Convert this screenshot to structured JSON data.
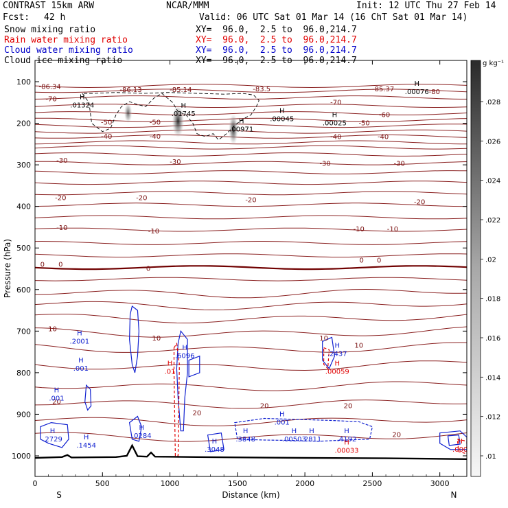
{
  "header": {
    "model": "CONTRAST 15km ARW",
    "source": "NCAR/MMM",
    "init": "Init: 12 UTC Thu 27 Feb 14",
    "fcst_label": "Fcst:",
    "fcst_value": "42 h",
    "valid": "Valid: 06 UTC Sat 01 Mar 14 (16 ChT Sat 01 Mar 14)"
  },
  "fields": [
    {
      "name": "Snow mixing ratio",
      "xy": "XY=  96.0,  2.5 to  96.0,214.7",
      "color": "#000000"
    },
    {
      "name": "Rain water mixing ratio",
      "xy": "XY=  96.0,  2.5 to  96.0,214.7",
      "color": "#e00000"
    },
    {
      "name": "Cloud water mixing ratio",
      "xy": "XY=  96.0,  2.5 to  96.0,214.7",
      "color": "#0000c8"
    },
    {
      "name": "Cloud ice mixing ratio",
      "xy": "XY=  96.0,  2.5 to  96.0,214.7",
      "color": "#000000"
    }
  ],
  "chart_data": {
    "type": "cross-section",
    "xlabel": "Distance (km)",
    "ylabel": "Pressure (hPa)",
    "xlim": [
      0,
      3200
    ],
    "ylim": [
      1050,
      60
    ],
    "x_ticks": [
      "0",
      "500",
      "1000",
      "1500",
      "2000",
      "2500",
      "3000"
    ],
    "y_ticks": [
      "100",
      "200",
      "300",
      "400",
      "500",
      "600",
      "700",
      "800",
      "900",
      "1000"
    ],
    "end_labels": {
      "left": "S",
      "right": "N"
    },
    "colorbar": {
      "unit": "g kg⁻¹",
      "ticks": [
        ".028",
        ".026",
        ".024",
        ".022",
        ".02",
        ".018",
        ".016",
        ".014",
        ".012",
        ".01"
      ],
      "min": 0.01,
      "max": 0.03
    },
    "temperature_isotherm_labels": [
      {
        "text": "-86.34",
        "x": 110,
        "p": 112
      },
      {
        "text": "-86.13",
        "x": 710,
        "p": 120
      },
      {
        "text": "-85.14",
        "x": 1080,
        "p": 120
      },
      {
        "text": "-83.5",
        "x": 1680,
        "p": 118
      },
      {
        "text": "-85.37",
        "x": 2580,
        "p": 118
      },
      {
        "text": "-80",
        "x": 2960,
        "p": 125
      },
      {
        "text": "-70",
        "x": 120,
        "p": 142
      },
      {
        "text": "-70",
        "x": 2230,
        "p": 150
      },
      {
        "text": "-60",
        "x": 2590,
        "p": 180
      },
      {
        "text": "-50",
        "x": 530,
        "p": 198
      },
      {
        "text": "-50",
        "x": 890,
        "p": 198
      },
      {
        "text": "-50",
        "x": 2440,
        "p": 200
      },
      {
        "text": "-40",
        "x": 530,
        "p": 232
      },
      {
        "text": "-40",
        "x": 890,
        "p": 232
      },
      {
        "text": "-40",
        "x": 2230,
        "p": 233
      },
      {
        "text": "-40",
        "x": 2580,
        "p": 233
      },
      {
        "text": "-30",
        "x": 200,
        "p": 290
      },
      {
        "text": "-30",
        "x": 1040,
        "p": 293
      },
      {
        "text": "-30",
        "x": 2150,
        "p": 297
      },
      {
        "text": "-30",
        "x": 2700,
        "p": 297
      },
      {
        "text": "-20",
        "x": 190,
        "p": 380
      },
      {
        "text": "-20",
        "x": 790,
        "p": 380
      },
      {
        "text": "-20",
        "x": 1600,
        "p": 385
      },
      {
        "text": "-20",
        "x": 2850,
        "p": 390
      },
      {
        "text": "-10",
        "x": 200,
        "p": 452
      },
      {
        "text": "-10",
        "x": 880,
        "p": 460
      },
      {
        "text": "-10",
        "x": 2400,
        "p": 455
      },
      {
        "text": "-10",
        "x": 2650,
        "p": 455
      },
      {
        "text": "0",
        "x": 55,
        "p": 540
      },
      {
        "text": "0",
        "x": 190,
        "p": 540
      },
      {
        "text": "0",
        "x": 840,
        "p": 550
      },
      {
        "text": "0",
        "x": 2420,
        "p": 530
      },
      {
        "text": "0",
        "x": 2550,
        "p": 530
      },
      {
        "text": "10",
        "x": 130,
        "p": 695
      },
      {
        "text": "10",
        "x": 900,
        "p": 718
      },
      {
        "text": "10",
        "x": 2140,
        "p": 718
      },
      {
        "text": "10",
        "x": 2400,
        "p": 735
      },
      {
        "text": "20",
        "x": 160,
        "p": 870
      },
      {
        "text": "20",
        "x": 1200,
        "p": 898
      },
      {
        "text": "20",
        "x": 1700,
        "p": 880
      },
      {
        "text": "20",
        "x": 2320,
        "p": 880
      },
      {
        "text": "20",
        "x": 2680,
        "p": 950
      }
    ],
    "snow_maxima": [
      {
        "label": ".01324",
        "x": 350,
        "p": 157
      },
      {
        "label": ".01745",
        "x": 1100,
        "p": 178
      },
      {
        "label": ".00971",
        "x": 1530,
        "p": 215
      },
      {
        "label": ".00045",
        "x": 1830,
        "p": 190
      },
      {
        "label": ".00025",
        "x": 2220,
        "p": 200
      },
      {
        "label": ".00076",
        "x": 2830,
        "p": 125
      }
    ],
    "cloud_water_maxima": [
      {
        "label": ".2001",
        "x": 330,
        "p": 725
      },
      {
        "label": ".001",
        "x": 340,
        "p": 790
      },
      {
        "label": ".001",
        "x": 160,
        "p": 862
      },
      {
        "label": ".6096",
        "x": 1110,
        "p": 760
      },
      {
        "label": ".2437",
        "x": 2240,
        "p": 755
      },
      {
        "label": ".2729",
        "x": 130,
        "p": 960
      },
      {
        "label": ".1454",
        "x": 380,
        "p": 975
      },
      {
        "label": ".0284",
        "x": 790,
        "p": 952
      },
      {
        "label": ".3048",
        "x": 1330,
        "p": 985
      },
      {
        "label": ".3848",
        "x": 1560,
        "p": 960
      },
      {
        "label": ".001",
        "x": 1830,
        "p": 920
      },
      {
        "label": ".00503",
        "x": 1920,
        "p": 960
      },
      {
        "label": ".2811",
        "x": 2050,
        "p": 960
      },
      {
        "label": ".4192",
        "x": 2310,
        "p": 960
      }
    ],
    "rain_maxima": [
      {
        "label": ".01",
        "x": 1000,
        "p": 798
      },
      {
        "label": ".00059",
        "x": 2240,
        "p": 798
      },
      {
        "label": ".00033",
        "x": 2310,
        "p": 988
      },
      {
        "label": ".000",
        "x": 3150,
        "p": 985
      }
    ]
  }
}
